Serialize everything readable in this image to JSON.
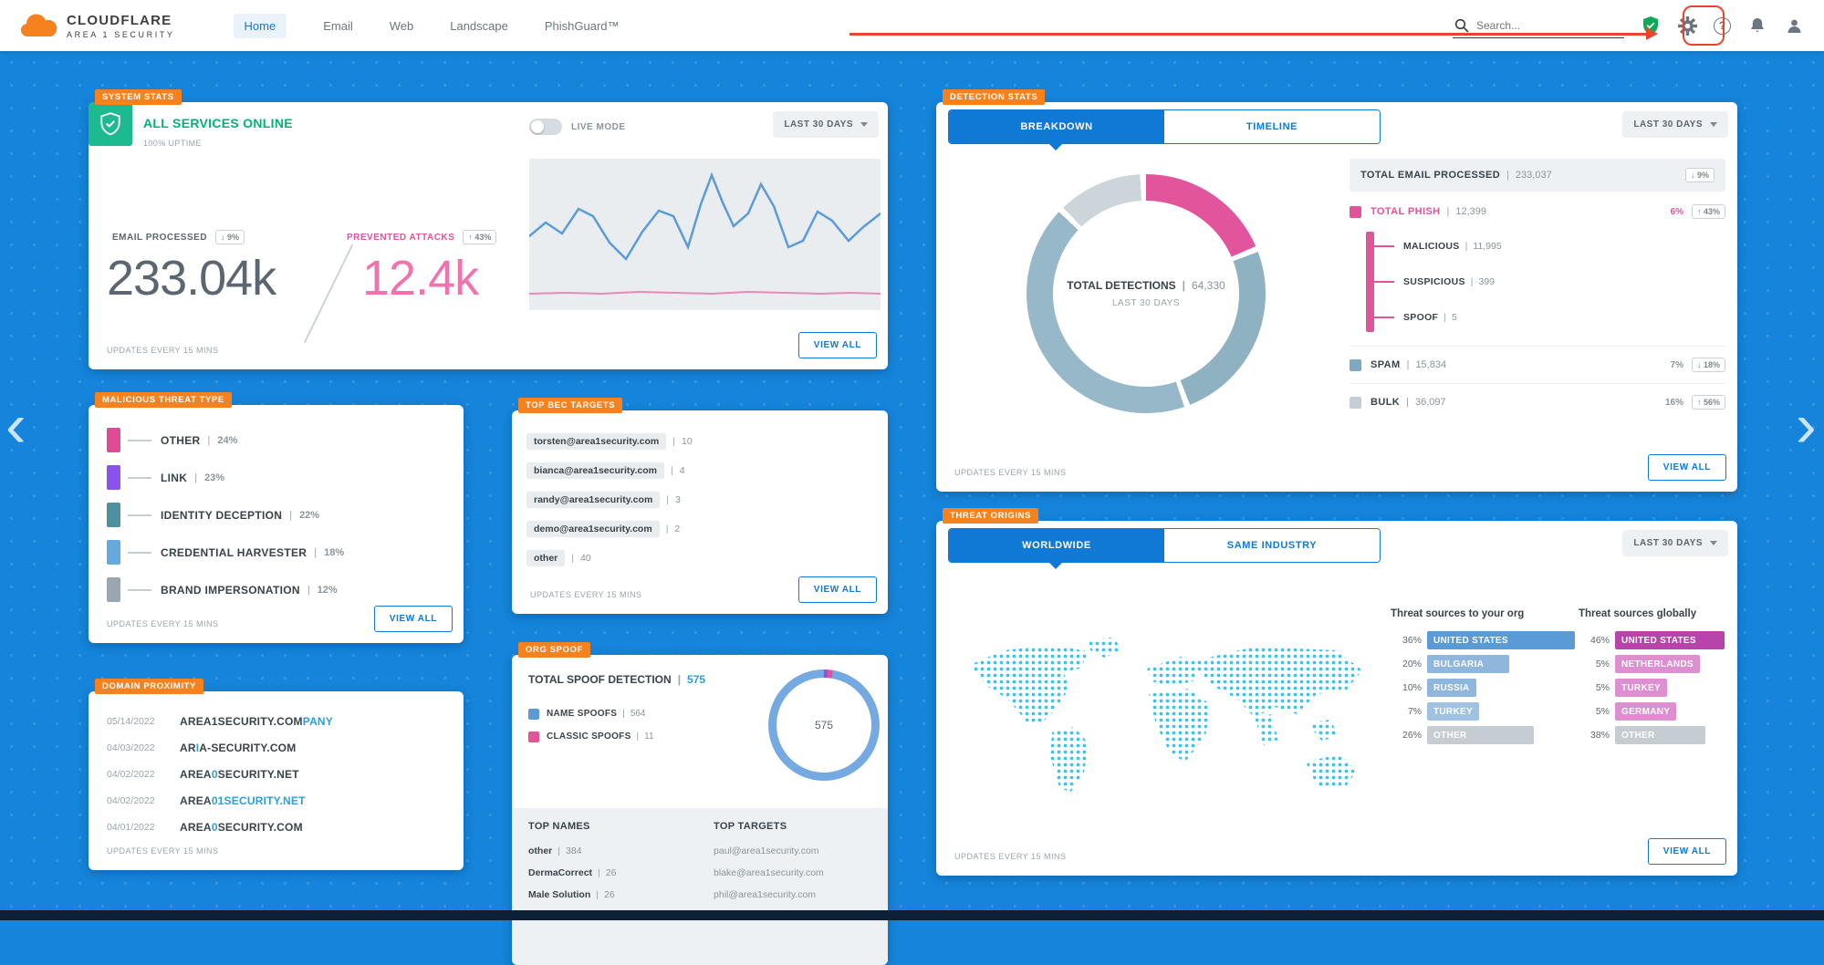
{
  "nav": {
    "brand_title": "CLOUDFLARE",
    "brand_sub": "AREA 1 SECURITY",
    "items": [
      {
        "label": "Home"
      },
      {
        "label": "Email"
      },
      {
        "label": "Web"
      },
      {
        "label": "Landscape"
      },
      {
        "label": "PhishGuard™"
      }
    ],
    "search_placeholder": "Search...",
    "help_glyph": "?"
  },
  "common": {
    "updates": "UPDATES EVERY 15 MINS",
    "view_all": "VIEW ALL",
    "range": "LAST 30 DAYS",
    "sep": "|"
  },
  "carousel": {
    "left": "‹",
    "right": "›"
  },
  "system_stats": {
    "tag": "SYSTEM STATS",
    "status": "ALL SERVICES ONLINE",
    "uptime": "100% UPTIME",
    "live_mode": "LIVE MODE",
    "email_processed": {
      "label": "EMAIL PROCESSED",
      "badge": "↓ 9%",
      "value": "233.04k"
    },
    "prevented_attacks": {
      "label": "PREVENTED ATTACKS",
      "badge": "↑ 43%",
      "value": "12.4k"
    }
  },
  "malicious_threat_type": {
    "tag": "MALICIOUS THREAT TYPE",
    "rows": [
      {
        "label": "OTHER",
        "pct": "24%",
        "color": "#df4b94"
      },
      {
        "label": "LINK",
        "pct": "23%",
        "color": "#8a52e8"
      },
      {
        "label": "IDENTITY DECEPTION",
        "pct": "22%",
        "color": "#4e8fa0"
      },
      {
        "label": "CREDENTIAL HARVESTER",
        "pct": "18%",
        "color": "#66a9dc"
      },
      {
        "label": "BRAND IMPERSONATION",
        "pct": "12%",
        "color": "#9aa7b0"
      }
    ]
  },
  "domain_proximity": {
    "tag": "DOMAIN PROXIMITY",
    "rows": [
      {
        "date": "05/14/2022",
        "pre": "AREA1SECURITY.COM",
        "hl": "PANY",
        "post": ""
      },
      {
        "date": "04/03/2022",
        "pre": "AR",
        "hl": "I",
        "post": "A-SECURITY.COM"
      },
      {
        "date": "04/02/2022",
        "pre": "AREA",
        "hl": "0",
        "post": "SECURITY.NET"
      },
      {
        "date": "04/02/2022",
        "pre": "AREA",
        "hl": "01SECURITY.NET",
        "post": ""
      },
      {
        "date": "04/01/2022",
        "pre": "AREA",
        "hl": "0",
        "post": "SECURITY.COM"
      }
    ]
  },
  "top_bec_targets": {
    "tag": "TOP BEC TARGETS",
    "rows": [
      {
        "name": "torsten@area1security.com",
        "count": "10"
      },
      {
        "name": "bianca@area1security.com",
        "count": "4"
      },
      {
        "name": "randy@area1security.com",
        "count": "3"
      },
      {
        "name": "demo@area1security.com",
        "count": "2"
      },
      {
        "name": "other",
        "count": "40"
      }
    ]
  },
  "org_spoof": {
    "tag": "ORG SPOOF",
    "title": "TOTAL SPOOF DETECTION",
    "total": "575",
    "legend": [
      {
        "label": "NAME SPOOFS",
        "value": "564",
        "color": "#5b9bd5"
      },
      {
        "label": "CLASSIC SPOOFS",
        "value": "11",
        "color": "#e0559a"
      }
    ],
    "donut_value": "575",
    "top_names_header": "TOP NAMES",
    "top_targets_header": "TOP TARGETS",
    "top_names": [
      {
        "name": "other",
        "count": "384"
      },
      {
        "name": "DermaCorrect",
        "count": "26"
      },
      {
        "name": "Male Solution",
        "count": "26"
      }
    ],
    "top_targets": [
      "paul@area1security.com",
      "blake@area1security.com",
      "phil@area1security.com"
    ]
  },
  "detection_stats": {
    "tag": "DETECTION STATS",
    "tabs": [
      "BREAKDOWN",
      "TIMELINE"
    ],
    "donut_label": "TOTAL DETECTIONS",
    "donut_value": "64,330",
    "donut_sub": "LAST 30 DAYS",
    "total_row": {
      "label": "TOTAL EMAIL PROCESSED",
      "value": "233,037",
      "badge": "↓ 9%"
    },
    "phish": {
      "label": "TOTAL PHISH",
      "value": "12,399",
      "pct": "6%",
      "badge": "↑ 43%",
      "color": "#e0549b"
    },
    "phish_sub": [
      {
        "label": "MALICIOUS",
        "value": "11,995"
      },
      {
        "label": "SUSPICIOUS",
        "value": "399"
      },
      {
        "label": "SPOOF",
        "value": "5"
      }
    ],
    "spam": {
      "label": "SPAM",
      "value": "15,834",
      "pct": "7%",
      "badge": "↓ 18%",
      "color": "#7fa9c2"
    },
    "bulk": {
      "label": "BULK",
      "value": "36,097",
      "pct": "16%",
      "badge": "↑ 56%",
      "color": "#c5ced4"
    }
  },
  "threat_origins": {
    "tag": "THREAT ORIGINS",
    "tabs": [
      "WORLDWIDE",
      "SAME INDUSTRY"
    ],
    "org_header": "Threat sources to your org",
    "global_header": "Threat sources globally",
    "org": [
      {
        "pct": "36%",
        "label": "UNITED STATES",
        "value": 36,
        "color": "#5b9bd5"
      },
      {
        "pct": "20%",
        "label": "BULGARIA",
        "value": 20,
        "color": "#8fb7de"
      },
      {
        "pct": "10%",
        "label": "RUSSIA",
        "value": 10,
        "color": "#8fb7de"
      },
      {
        "pct": "7%",
        "label": "TURKEY",
        "value": 7,
        "color": "#9fc1e2"
      },
      {
        "pct": "26%",
        "label": "OTHER",
        "value": 26,
        "color": "#c5cdd2"
      }
    ],
    "global": [
      {
        "pct": "46%",
        "label": "UNITED STATES",
        "value": 46,
        "color": "#b844ab"
      },
      {
        "pct": "5%",
        "label": "NETHERLANDS",
        "value": 5,
        "color": "#dd8fd2"
      },
      {
        "pct": "5%",
        "label": "TURKEY",
        "value": 5,
        "color": "#dd8fd2"
      },
      {
        "pct": "5%",
        "label": "GERMANY",
        "value": 5,
        "color": "#dd8fd2"
      },
      {
        "pct": "38%",
        "label": "OTHER",
        "value": 38,
        "color": "#c5cdd2"
      }
    ]
  }
}
